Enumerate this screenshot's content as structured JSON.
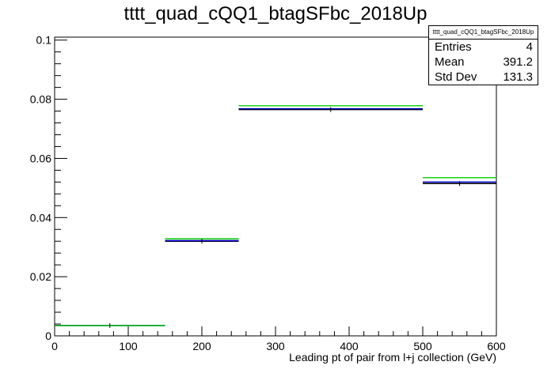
{
  "chart_data": {
    "type": "histogram",
    "title": "tttt_quad_cQQ1_btagSFbc_2018Up",
    "xlabel": "Leading pt of pair from l+j collection (GeV)",
    "ylabel": "",
    "xlim": [
      0,
      600
    ],
    "ylim": [
      0,
      0.101
    ],
    "x_ticks": [
      0,
      100,
      200,
      300,
      400,
      500,
      600
    ],
    "y_ticks": [
      0,
      0.02,
      0.04,
      0.06,
      0.08,
      0.1
    ],
    "y_tick_labels": [
      "0",
      "0.02",
      "0.04",
      "0.06",
      "0.08",
      "0.1"
    ],
    "bin_edges": [
      0,
      150,
      250,
      500,
      600
    ],
    "series": [
      {
        "values": [
          0.0035,
          0.032,
          0.0765,
          0.0515
        ],
        "color": "#000000"
      },
      {
        "values": [
          0.0035,
          0.0322,
          0.0768,
          0.052
        ],
        "color": "#0000cc"
      },
      {
        "values": [
          0.0035,
          0.0328,
          0.0778,
          0.0535
        ],
        "color": "#00cc00"
      }
    ],
    "legend": "none",
    "grid": false
  },
  "stats_box": {
    "name": "tttt_quad_cQQ1_btagSFbc_2018Up",
    "rows": [
      {
        "label": "Entries",
        "value": "4"
      },
      {
        "label": "Mean",
        "value": "391.2"
      },
      {
        "label": "Std Dev",
        "value": "131.3"
      }
    ]
  }
}
